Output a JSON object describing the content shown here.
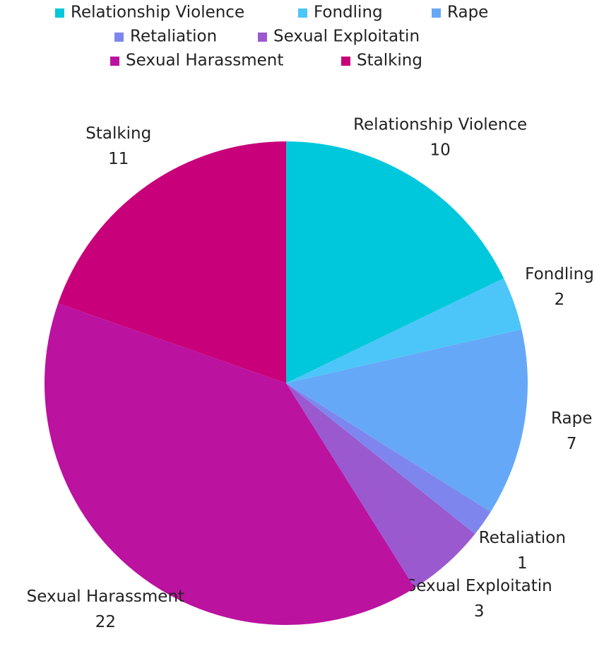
{
  "chart_data": {
    "type": "pie",
    "categories": [
      "Relationship Violence",
      "Fondling",
      "Rape",
      "Retaliation",
      "Sexual Exploitatin",
      "Sexual Harassment",
      "Stalking"
    ],
    "values": [
      10,
      2,
      7,
      1,
      3,
      22,
      11
    ],
    "colors": [
      "#00c8dc",
      "#4cc6f8",
      "#66a8f8",
      "#7e86ee",
      "#9b59d0",
      "#bb12a0",
      "#c8007a"
    ],
    "legend": "top"
  }
}
